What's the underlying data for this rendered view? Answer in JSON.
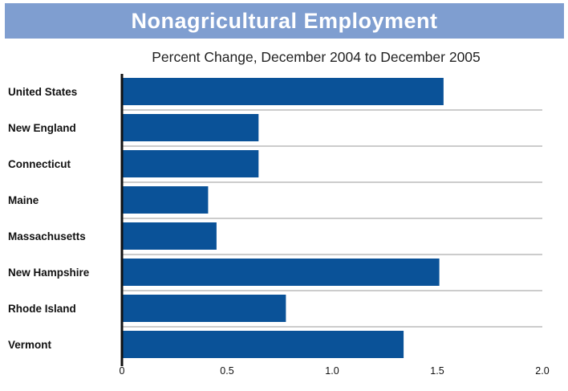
{
  "colors": {
    "title_band": "#7f9ed0",
    "bar": "#0a5298",
    "axis": "#111111",
    "separator": "#9a9a9a"
  },
  "chart_data": {
    "type": "bar",
    "orientation": "horizontal",
    "title": "Nonagricultural Employment",
    "subtitle": "Percent Change, December 2004 to December 2005",
    "categories": [
      "United States",
      "New England",
      "Connecticut",
      "Maine",
      "Massachusetts",
      "New Hampshire",
      "Rhode Island",
      "Vermont"
    ],
    "values": [
      1.53,
      0.65,
      0.65,
      0.41,
      0.45,
      1.51,
      0.78,
      1.34
    ],
    "xlim": [
      0,
      2.0
    ],
    "xticks": [
      0,
      0.5,
      1.0,
      1.5,
      2.0
    ],
    "xtick_labels": [
      "0",
      "0.5",
      "1.0",
      "1.5",
      "2.0"
    ],
    "grid": false,
    "legend": "none"
  }
}
